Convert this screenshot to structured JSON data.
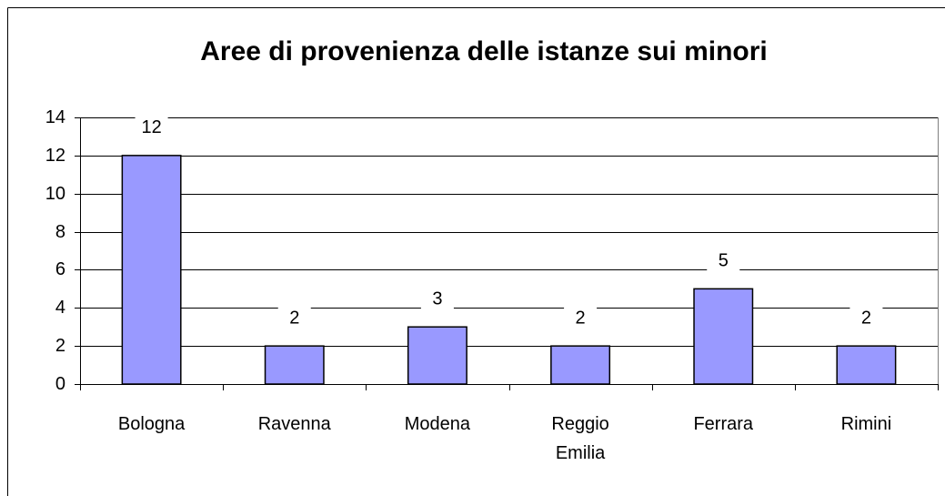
{
  "chart_data": {
    "type": "bar",
    "title": "Aree di provenienza delle istanze sui minori",
    "categories": [
      "Bologna",
      "Ravenna",
      "Modena",
      "Reggio Emilia",
      "Ferrara",
      "Rimini"
    ],
    "values": [
      12,
      2,
      3,
      2,
      5,
      2
    ],
    "color": "#9999ff",
    "ylim": [
      0,
      14
    ],
    "yticks": [
      0,
      2,
      4,
      6,
      8,
      10,
      12,
      14
    ],
    "grid": true
  }
}
